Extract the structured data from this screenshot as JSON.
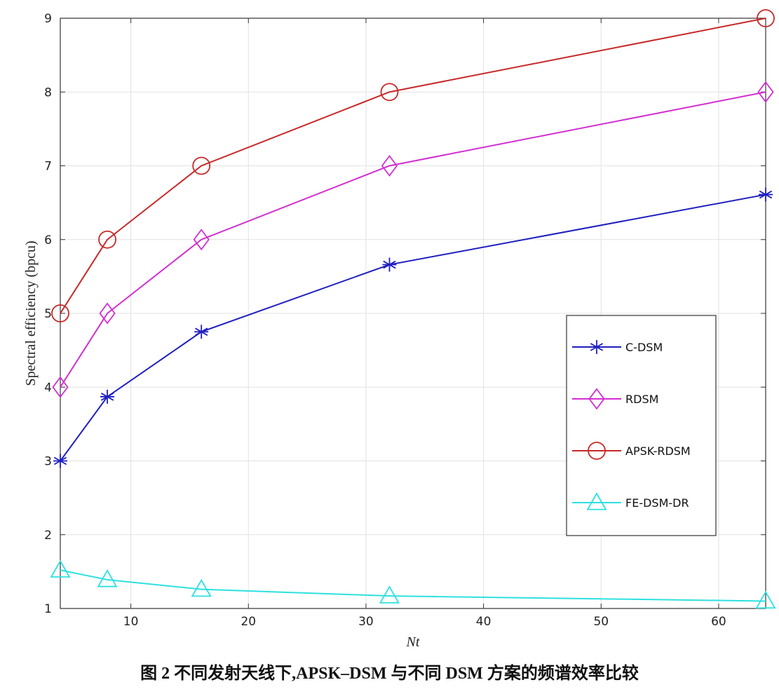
{
  "caption": "图 2  不同发射天线下,APSK–DSM 与不同 DSM 方案的频谱效率比较",
  "chart_data": {
    "type": "line",
    "title": "",
    "xlabel": "Nt",
    "ylabel": "Spectral efficiency (bpcu)",
    "xlim": [
      4,
      64
    ],
    "ylim": [
      1,
      9
    ],
    "xticks": [
      10,
      20,
      30,
      40,
      50,
      60
    ],
    "yticks": [
      1,
      2,
      3,
      4,
      5,
      6,
      7,
      8,
      9
    ],
    "grid": true,
    "legend_position": "right",
    "x": [
      4,
      8,
      16,
      32,
      64
    ],
    "series": [
      {
        "name": "C-DSM",
        "values": [
          3,
          3.87,
          4.75,
          5.66,
          6.61
        ],
        "color": "#1f1fbf",
        "marker": "asterisk"
      },
      {
        "name": "RDSM",
        "values": [
          4,
          5,
          6,
          7,
          8
        ],
        "color": "#d22ed2",
        "marker": "diamond"
      },
      {
        "name": "APSK-RDSM",
        "values": [
          5,
          6,
          7,
          8,
          9
        ],
        "color": "#c82828",
        "marker": "circle"
      },
      {
        "name": "FE-DSM-DR",
        "values": [
          1.52,
          1.39,
          1.26,
          1.17,
          1.1
        ],
        "color": "#2ee0e0",
        "marker": "triangle"
      }
    ]
  }
}
